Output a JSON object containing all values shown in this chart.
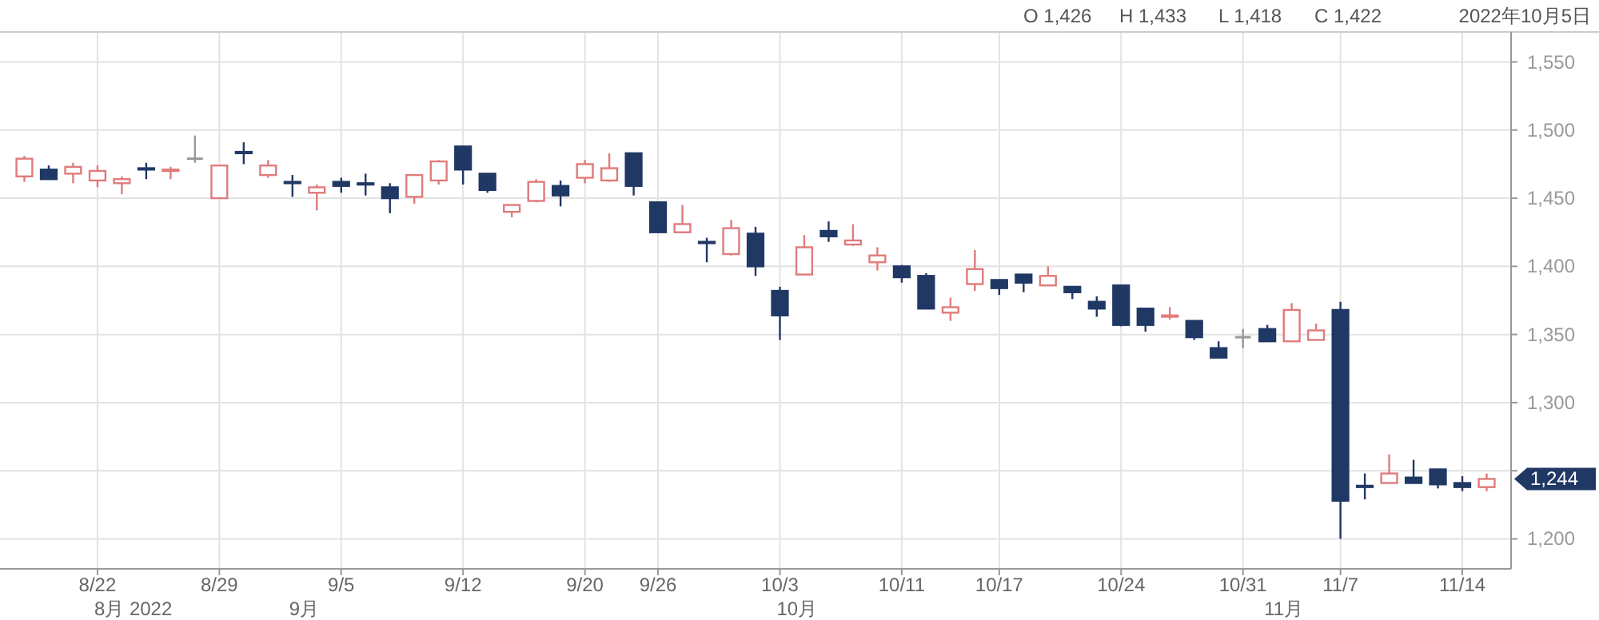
{
  "chart_data": {
    "type": "candlestick",
    "categories": [
      null,
      null,
      null,
      "8/22",
      null,
      null,
      null,
      null,
      "8/29",
      null,
      null,
      null,
      null,
      "9/5",
      null,
      null,
      null,
      null,
      "9/12",
      null,
      null,
      null,
      null,
      "9/20",
      null,
      null,
      "9/26",
      null,
      null,
      null,
      null,
      "10/3",
      null,
      null,
      null,
      null,
      "10/11",
      null,
      null,
      null,
      "10/17",
      null,
      null,
      null,
      null,
      "10/24",
      null,
      null,
      null,
      null,
      "10/31",
      null,
      null,
      null,
      "11/7",
      null,
      null,
      null,
      null,
      "11/14",
      null
    ],
    "ohlc": [
      [
        1466,
        1481,
        1462,
        1479
      ],
      [
        1471,
        1474,
        1464,
        1464
      ],
      [
        1468,
        1476,
        1461,
        1473
      ],
      [
        1463,
        1474,
        1458,
        1470
      ],
      [
        1461,
        1466,
        1453,
        1464
      ],
      [
        1472,
        1476,
        1464,
        1471
      ],
      [
        1470,
        1473,
        1464,
        1471
      ],
      [
        1479,
        1496,
        1476,
        1479
      ],
      [
        1450,
        1474,
        1450,
        1474
      ],
      [
        1484,
        1491,
        1475,
        1483
      ],
      [
        1467,
        1478,
        1465,
        1474
      ],
      [
        1462,
        1467,
        1451,
        1461
      ],
      [
        1454,
        1460,
        1441,
        1458
      ],
      [
        1462,
        1465,
        1454,
        1459
      ],
      [
        1461,
        1468,
        1452,
        1460
      ],
      [
        1458,
        1461,
        1439,
        1450
      ],
      [
        1451,
        1467,
        1446,
        1467
      ],
      [
        1463,
        1478,
        1460,
        1477
      ],
      [
        1488,
        1488,
        1460,
        1471
      ],
      [
        1468,
        1468,
        1454,
        1456
      ],
      [
        1440,
        1445,
        1436,
        1445
      ],
      [
        1448,
        1464,
        1447,
        1462
      ],
      [
        1459,
        1463,
        1444,
        1452
      ],
      [
        1465,
        1478,
        1461,
        1475
      ],
      [
        1463,
        1483,
        1462,
        1472
      ],
      [
        1483,
        1483,
        1452,
        1459
      ],
      [
        1447,
        1447,
        1425,
        1425
      ],
      [
        1425,
        1445,
        1425,
        1431
      ],
      [
        1418,
        1421,
        1403,
        1417
      ],
      [
        1409,
        1434,
        1408,
        1428
      ],
      [
        1424,
        1429,
        1393,
        1400
      ],
      [
        1382,
        1385,
        1346,
        1364
      ],
      [
        1394,
        1423,
        1394,
        1414
      ],
      [
        1426,
        1433,
        1418,
        1422
      ],
      [
        1416,
        1431,
        1415,
        1419
      ],
      [
        1403,
        1414,
        1397,
        1408
      ],
      [
        1400,
        1401,
        1388,
        1392
      ],
      [
        1393,
        1395,
        1369,
        1369
      ],
      [
        1366,
        1377,
        1360,
        1370
      ],
      [
        1387,
        1412,
        1382,
        1398
      ],
      [
        1390,
        1390,
        1379,
        1384
      ],
      [
        1394,
        1394,
        1381,
        1388
      ],
      [
        1386,
        1400,
        1386,
        1393
      ],
      [
        1385,
        1385,
        1376,
        1381
      ],
      [
        1374,
        1378,
        1363,
        1369
      ],
      [
        1386,
        1386,
        1356,
        1357
      ],
      [
        1369,
        1369,
        1352,
        1357
      ],
      [
        1363,
        1370,
        1361,
        1364
      ],
      [
        1360,
        1360,
        1346,
        1348
      ],
      [
        1340,
        1345,
        1333,
        1333
      ],
      [
        1348,
        1354,
        1340,
        1348
      ],
      [
        1354,
        1357,
        1345,
        1345
      ],
      [
        1345,
        1373,
        1345,
        1368
      ],
      [
        1346,
        1358,
        1346,
        1353
      ],
      [
        1368,
        1374,
        1200,
        1228
      ],
      [
        1239,
        1248,
        1229,
        1238
      ],
      [
        1241,
        1262,
        1241,
        1248
      ],
      [
        1245,
        1258,
        1241,
        1241
      ],
      [
        1251,
        1251,
        1237,
        1240
      ],
      [
        1241,
        1246,
        1235,
        1238
      ],
      [
        1238,
        1248,
        1235,
        1244
      ]
    ],
    "colors": [
      "#e07b7b",
      "#203864",
      "#e07b7b",
      "#e07b7b",
      "#e07b7b",
      "#203864",
      "#e07b7b",
      "#999999",
      "#e07b7b",
      "#203864",
      "#e07b7b",
      "#203864",
      "#e07b7b",
      "#203864",
      "#203864",
      "#203864",
      "#e07b7b",
      "#e07b7b",
      "#203864",
      "#203864",
      "#e07b7b",
      "#e07b7b",
      "#203864",
      "#e07b7b",
      "#e07b7b",
      "#203864",
      "#203864",
      "#e07b7b",
      "#203864",
      "#e07b7b",
      "#203864",
      "#203864",
      "#e07b7b",
      "#203864",
      "#e07b7b",
      "#e07b7b",
      "#203864",
      "#203864",
      "#e07b7b",
      "#e07b7b",
      "#203864",
      "#203864",
      "#e07b7b",
      "#203864",
      "#203864",
      "#203864",
      "#203864",
      "#e07b7b",
      "#203864",
      "#203864",
      "#999999",
      "#203864",
      "#e07b7b",
      "#e07b7b",
      "#203864",
      "#203864",
      "#e07b7b",
      "#203864",
      "#203864",
      "#203864",
      "#e07b7b"
    ],
    "ylim": [
      1178,
      1572
    ],
    "yticks": [
      {
        "value": 1200,
        "label": "1,200"
      },
      {
        "value": 1250,
        "label": null
      },
      {
        "value": 1300,
        "label": "1,300"
      },
      {
        "value": 1350,
        "label": "1,350"
      },
      {
        "value": 1400,
        "label": "1,400"
      },
      {
        "value": 1450,
        "label": "1,450"
      },
      {
        "value": 1500,
        "label": "1,500"
      },
      {
        "value": 1550,
        "label": "1,550"
      }
    ],
    "grid": true,
    "annotations": [
      "O 1,426",
      "H 1,433",
      "L 1,418",
      "C 1,422",
      "2022年10月5日",
      "8月 2022",
      "9月",
      "10月",
      "11月",
      "1,244"
    ]
  }
}
